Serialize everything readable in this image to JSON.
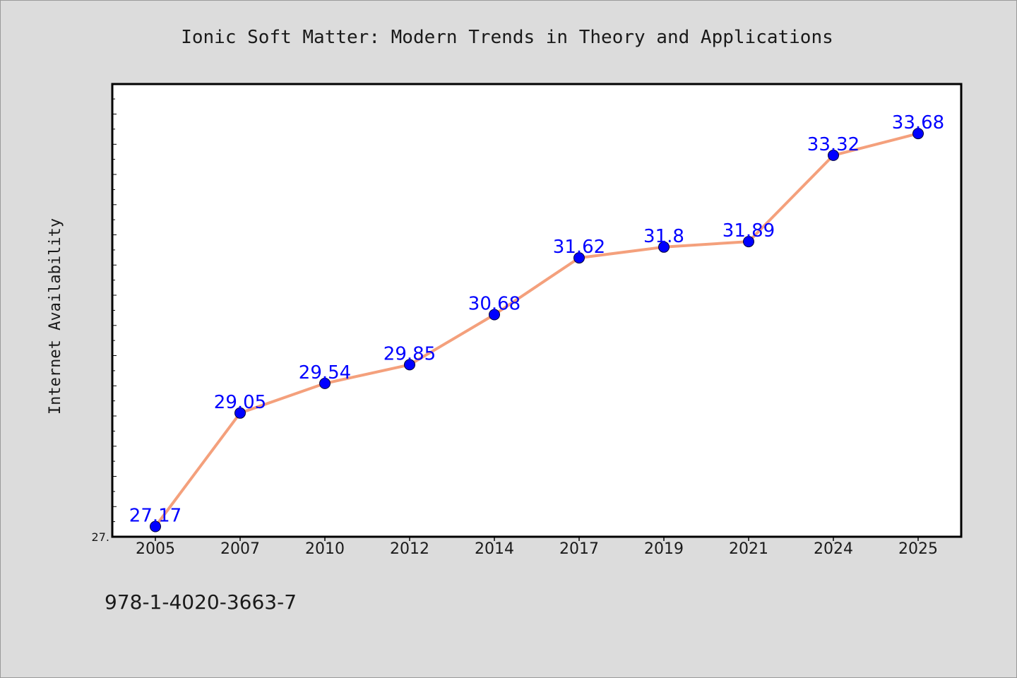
{
  "chart_data": {
    "type": "line",
    "title": "Ionic Soft Matter: Modern Trends in Theory and Applications",
    "xlabel": "",
    "ylabel": "Internet Availability",
    "categories": [
      "2005",
      "2007",
      "2010",
      "2012",
      "2014",
      "2017",
      "2019",
      "2021",
      "2024",
      "2025"
    ],
    "values": [
      27.17,
      29.05,
      29.54,
      29.85,
      30.68,
      31.62,
      31.8,
      31.89,
      33.32,
      33.68
    ],
    "data_labels": [
      "27.17",
      "29.05",
      "29.54",
      "29.85",
      "30.68",
      "31.62",
      "31.8",
      "31.89",
      "33.32",
      "33.68"
    ],
    "ylim": [
      27.0,
      34.5
    ],
    "y_tick_label": "27.",
    "grid": false,
    "legend": "none",
    "colors": {
      "line": "#f4a07c",
      "marker": "#0000ff",
      "data_label": "#0000ff",
      "plot_background": "#ffffff",
      "figure_background": "#dcdcdc"
    }
  },
  "footer": {
    "isbn": "978-1-4020-3663-7"
  }
}
